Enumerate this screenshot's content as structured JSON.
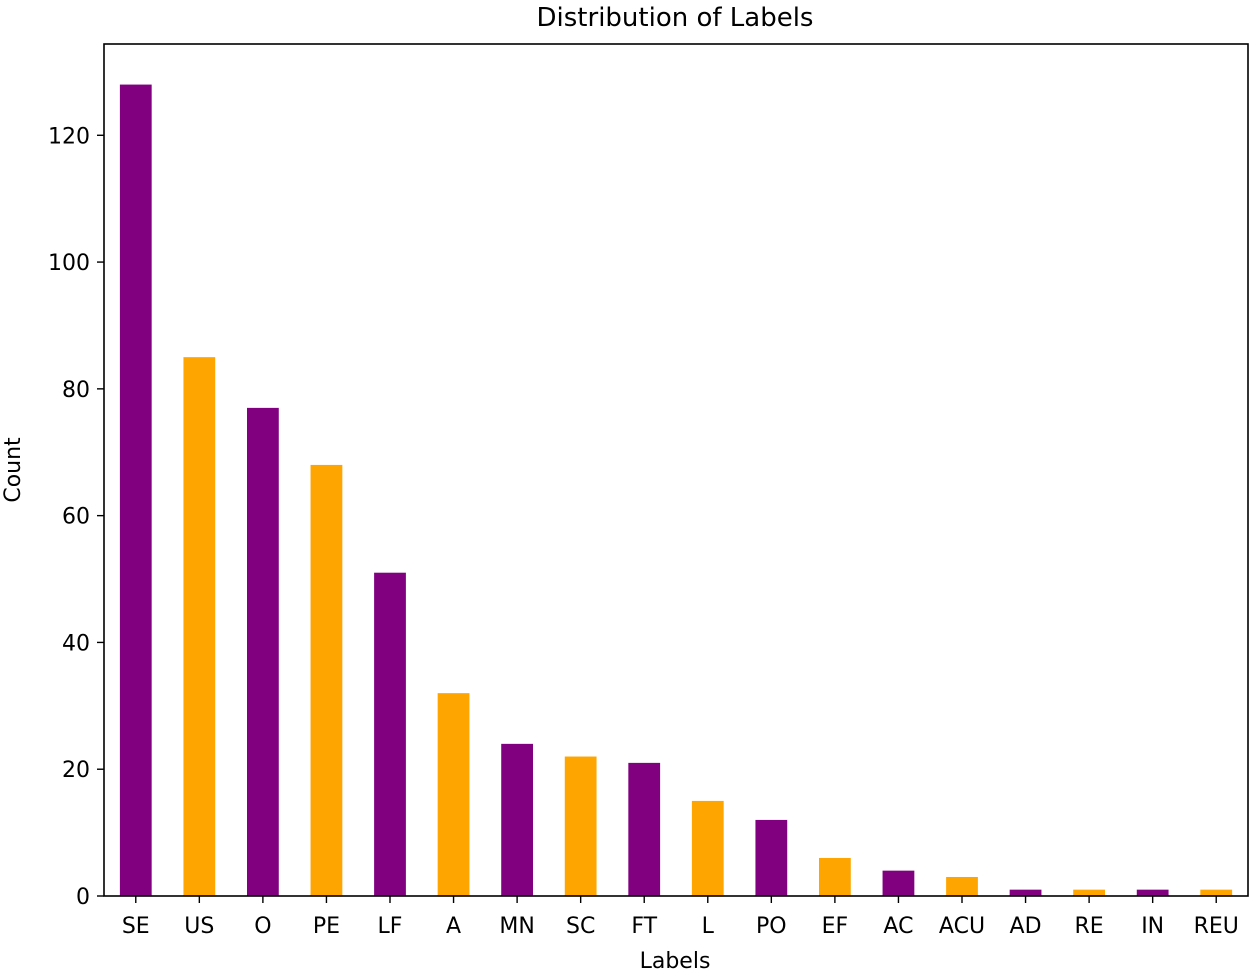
{
  "chart_data": {
    "type": "bar",
    "title": "Distribution of Labels",
    "xlabel": "Labels",
    "ylabel": "Count",
    "categories": [
      "SE",
      "US",
      "O",
      "PE",
      "LF",
      "A",
      "MN",
      "SC",
      "FT",
      "L",
      "PO",
      "EF",
      "AC",
      "ACU",
      "AD",
      "RE",
      "IN",
      "REU"
    ],
    "values": [
      128,
      85,
      77,
      68,
      51,
      32,
      24,
      22,
      21,
      15,
      12,
      6,
      4,
      3,
      1,
      1,
      1,
      1
    ],
    "colors": [
      "#800080",
      "#FFA500",
      "#800080",
      "#FFA500",
      "#800080",
      "#FFA500",
      "#800080",
      "#FFA500",
      "#800080",
      "#FFA500",
      "#800080",
      "#FFA500",
      "#800080",
      "#FFA500",
      "#800080",
      "#FFA500",
      "#800080",
      "#FFA500"
    ],
    "yticks": [
      0,
      20,
      40,
      60,
      80,
      100,
      120
    ],
    "ylim": [
      0,
      134.4
    ],
    "grid": false,
    "legend": false
  }
}
